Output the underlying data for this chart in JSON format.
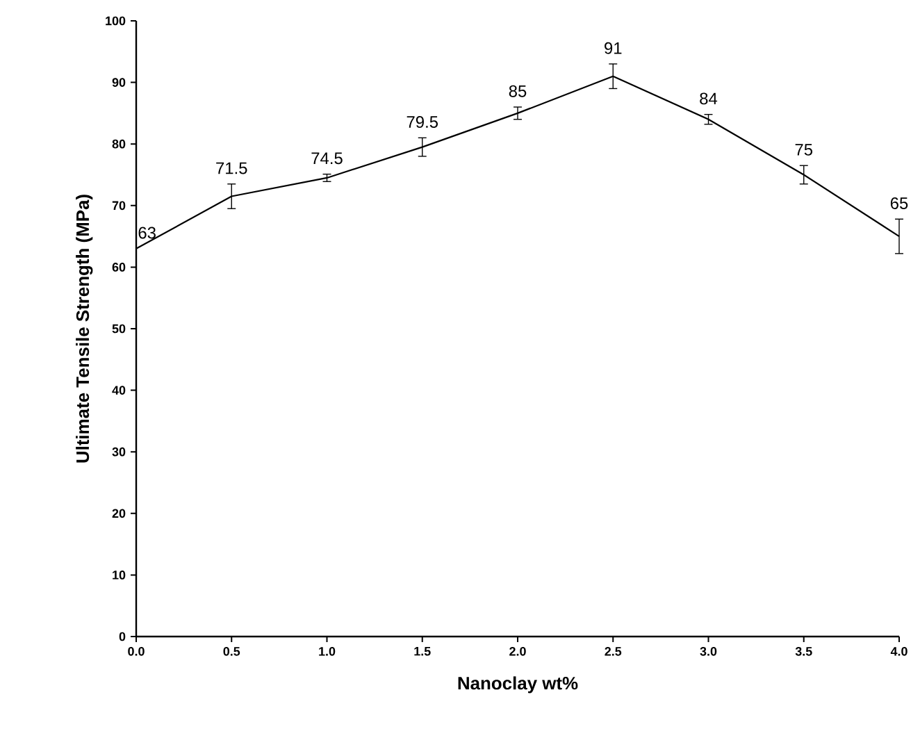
{
  "chart_data": {
    "type": "line",
    "xlabel": "Nanoclay wt%",
    "ylabel": "Ultimate Tensile Strength (MPa)",
    "x": [
      0,
      0.5,
      1,
      1.5,
      2,
      2.5,
      3,
      3.5,
      4
    ],
    "series": [
      {
        "color": "#000000",
        "values": [
          63,
          71.5,
          74.5,
          79.5,
          85,
          91,
          84,
          75,
          65
        ],
        "errors": [
          null,
          2,
          0.6,
          1.5,
          1,
          2,
          0.8,
          1.5,
          2.8
        ]
      }
    ],
    "data_labels": true,
    "marker": "none",
    "line_style": "solid",
    "xlim": [
      0,
      4
    ],
    "ylim": [
      0,
      100
    ],
    "xticks": [
      {
        "value": 0,
        "label": "0.0"
      },
      {
        "value": 0.5,
        "label": "0.5"
      },
      {
        "value": 1,
        "label": "1.0"
      },
      {
        "value": 1.5,
        "label": "1.5"
      },
      {
        "value": 2,
        "label": "2.0"
      },
      {
        "value": 2.5,
        "label": "2.5"
      },
      {
        "value": 3,
        "label": "3.0"
      },
      {
        "value": 3.5,
        "label": "3.5"
      },
      {
        "value": 4,
        "label": "4.0"
      }
    ],
    "yticks": [
      0,
      10,
      20,
      30,
      40,
      50,
      60,
      70,
      80,
      90,
      100
    ]
  }
}
